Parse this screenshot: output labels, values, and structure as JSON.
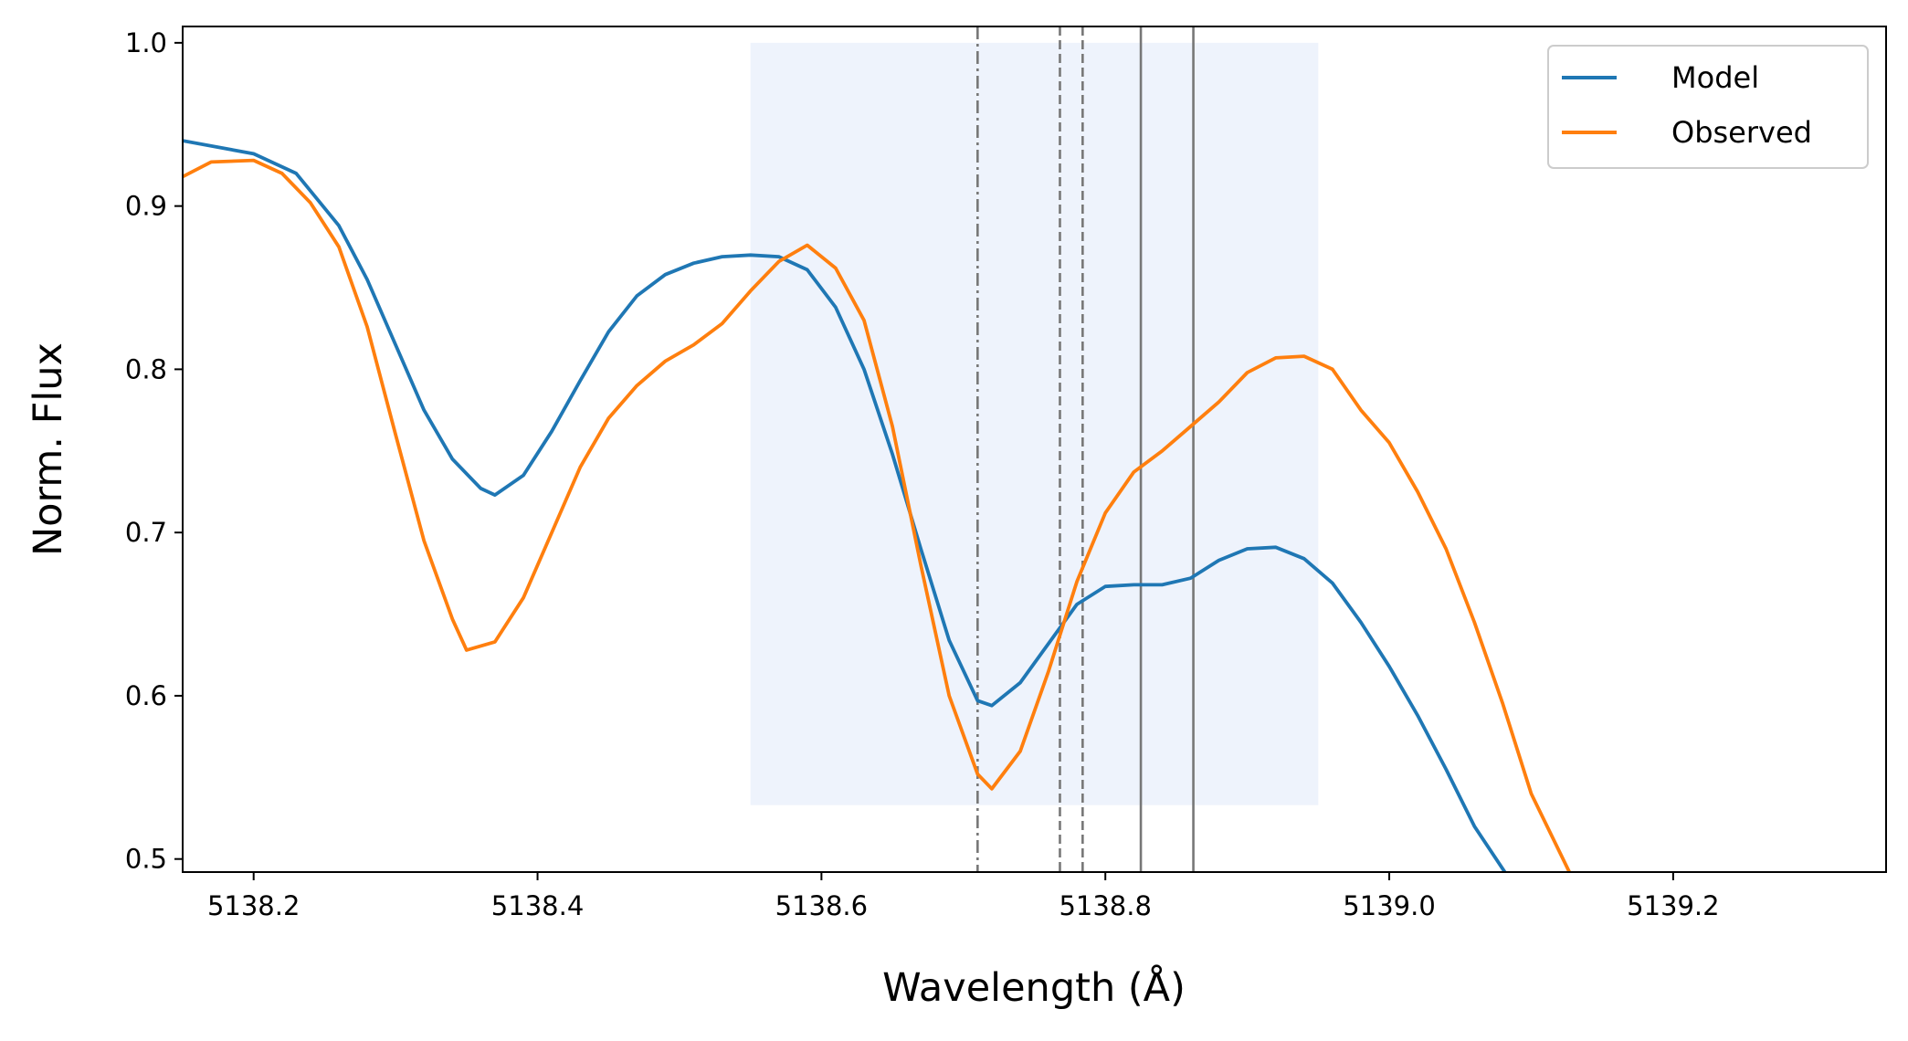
{
  "chart_data": {
    "type": "line",
    "xlabel": "Wavelength (Å)",
    "ylabel": "Norm. Flux",
    "xlim": [
      5138.15,
      5139.35
    ],
    "ylim": [
      0.492,
      1.01
    ],
    "x_ticks": [
      {
        "value": 5138.2,
        "label": "5138.2"
      },
      {
        "value": 5138.4,
        "label": "5138.4"
      },
      {
        "value": 5138.6,
        "label": "5138.6"
      },
      {
        "value": 5138.8,
        "label": "5138.8"
      },
      {
        "value": 5139.0,
        "label": "5139.0"
      },
      {
        "value": 5139.2,
        "label": "5139.2"
      }
    ],
    "y_ticks": [
      {
        "value": 0.5,
        "label": "0.5"
      },
      {
        "value": 0.6,
        "label": "0.6"
      },
      {
        "value": 0.7,
        "label": "0.7"
      },
      {
        "value": 0.8,
        "label": "0.8"
      },
      {
        "value": 0.9,
        "label": "0.9"
      },
      {
        "value": 1.0,
        "label": "1.0"
      }
    ],
    "grid": false,
    "legend_position": "top-right",
    "shaded_region": {
      "x_range": [
        5138.55,
        5138.95
      ],
      "y_range": [
        0.533,
        1.0
      ],
      "color": "#eef3fc"
    },
    "vertical_lines": [
      {
        "x": 5138.71,
        "style": "dashdot",
        "color": "#777777"
      },
      {
        "x": 5138.768,
        "style": "dashed",
        "color": "#777777"
      },
      {
        "x": 5138.784,
        "style": "dashed",
        "color": "#777777"
      },
      {
        "x": 5138.825,
        "style": "solid",
        "color": "#777777"
      },
      {
        "x": 5138.862,
        "style": "solid",
        "color": "#777777"
      }
    ],
    "series": [
      {
        "name": "Model",
        "color": "#1f77b4",
        "x": [
          5138.15,
          5138.2,
          5138.23,
          5138.26,
          5138.28,
          5138.3,
          5138.32,
          5138.34,
          5138.36,
          5138.37,
          5138.39,
          5138.41,
          5138.43,
          5138.45,
          5138.47,
          5138.49,
          5138.51,
          5138.53,
          5138.55,
          5138.57,
          5138.59,
          5138.61,
          5138.63,
          5138.65,
          5138.67,
          5138.69,
          5138.71,
          5138.72,
          5138.74,
          5138.76,
          5138.78,
          5138.8,
          5138.82,
          5138.84,
          5138.86,
          5138.88,
          5138.9,
          5138.92,
          5138.94,
          5138.96,
          5138.98,
          5139.0,
          5139.02,
          5139.04,
          5139.06,
          5139.083
        ],
        "y": [
          0.94,
          0.932,
          0.92,
          0.888,
          0.855,
          0.815,
          0.775,
          0.745,
          0.727,
          0.723,
          0.735,
          0.762,
          0.793,
          0.823,
          0.845,
          0.858,
          0.865,
          0.869,
          0.87,
          0.869,
          0.861,
          0.838,
          0.8,
          0.748,
          0.69,
          0.634,
          0.597,
          0.594,
          0.608,
          0.632,
          0.656,
          0.667,
          0.668,
          0.668,
          0.672,
          0.683,
          0.69,
          0.691,
          0.684,
          0.669,
          0.645,
          0.618,
          0.588,
          0.555,
          0.52,
          0.49
        ]
      },
      {
        "name": "Observed",
        "color": "#ff7f0e",
        "x": [
          5138.15,
          5138.17,
          5138.2,
          5138.22,
          5138.24,
          5138.26,
          5138.28,
          5138.3,
          5138.32,
          5138.34,
          5138.35,
          5138.37,
          5138.39,
          5138.41,
          5138.43,
          5138.45,
          5138.47,
          5138.49,
          5138.51,
          5138.53,
          5138.55,
          5138.57,
          5138.59,
          5138.61,
          5138.63,
          5138.65,
          5138.67,
          5138.69,
          5138.71,
          5138.72,
          5138.74,
          5138.76,
          5138.78,
          5138.8,
          5138.82,
          5138.84,
          5138.86,
          5138.88,
          5138.9,
          5138.92,
          5138.94,
          5138.96,
          5138.98,
          5139.0,
          5139.02,
          5139.04,
          5139.06,
          5139.08,
          5139.1,
          5139.128
        ],
        "y": [
          0.918,
          0.927,
          0.928,
          0.92,
          0.902,
          0.875,
          0.826,
          0.76,
          0.695,
          0.647,
          0.628,
          0.633,
          0.66,
          0.7,
          0.74,
          0.77,
          0.79,
          0.805,
          0.815,
          0.828,
          0.848,
          0.866,
          0.876,
          0.862,
          0.83,
          0.765,
          0.68,
          0.6,
          0.552,
          0.543,
          0.566,
          0.615,
          0.67,
          0.712,
          0.737,
          0.75,
          0.765,
          0.78,
          0.798,
          0.807,
          0.808,
          0.8,
          0.775,
          0.755,
          0.725,
          0.69,
          0.645,
          0.595,
          0.54,
          0.49
        ]
      }
    ]
  }
}
